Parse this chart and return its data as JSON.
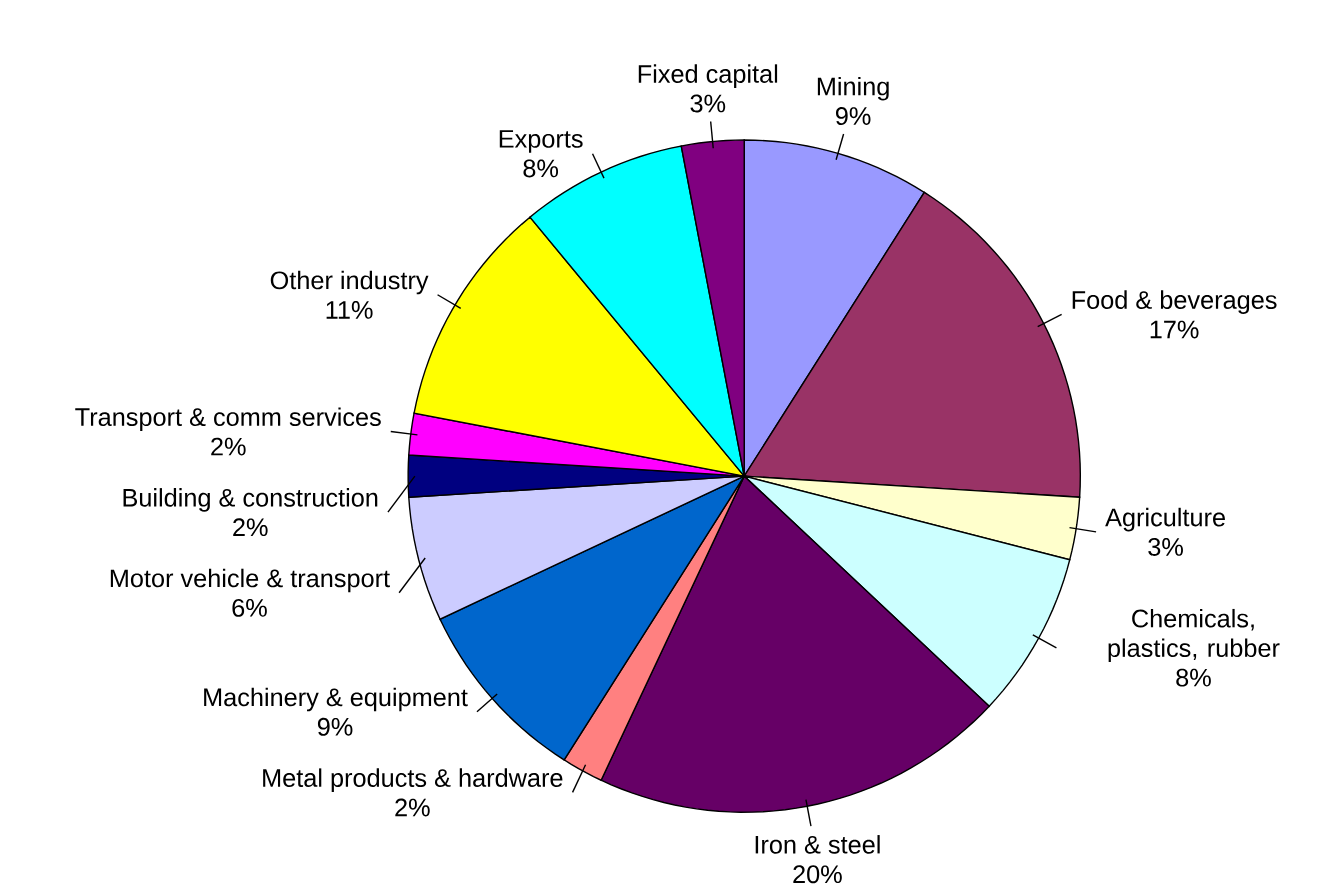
{
  "chart_data": {
    "type": "pie",
    "categories": [
      "Mining",
      "Food & beverages",
      "Agriculture",
      "Chemicals, plastics, rubber",
      "Iron & steel",
      "Metal products & hardware",
      "Machinery & equipment",
      "Motor vehicle & transport",
      "Building & construction",
      "Transport & comm services",
      "Other industry",
      "Exports",
      "Fixed capital"
    ],
    "values": [
      9,
      17,
      3,
      8,
      20,
      2,
      9,
      6,
      2,
      2,
      11,
      8,
      3
    ],
    "value_labels": [
      "9%",
      "17%",
      "3%",
      "8%",
      "20%",
      "2%",
      "9%",
      "6%",
      "2%",
      "2%",
      "11%",
      "8%",
      "3%"
    ],
    "colors": [
      "#9999ff",
      "#993366",
      "#ffffcc",
      "#ccffff",
      "#660066",
      "#ff8080",
      "#0066cc",
      "#ccccff",
      "#000080",
      "#ff00ff",
      "#ffff00",
      "#00ffff",
      "#800080"
    ]
  }
}
